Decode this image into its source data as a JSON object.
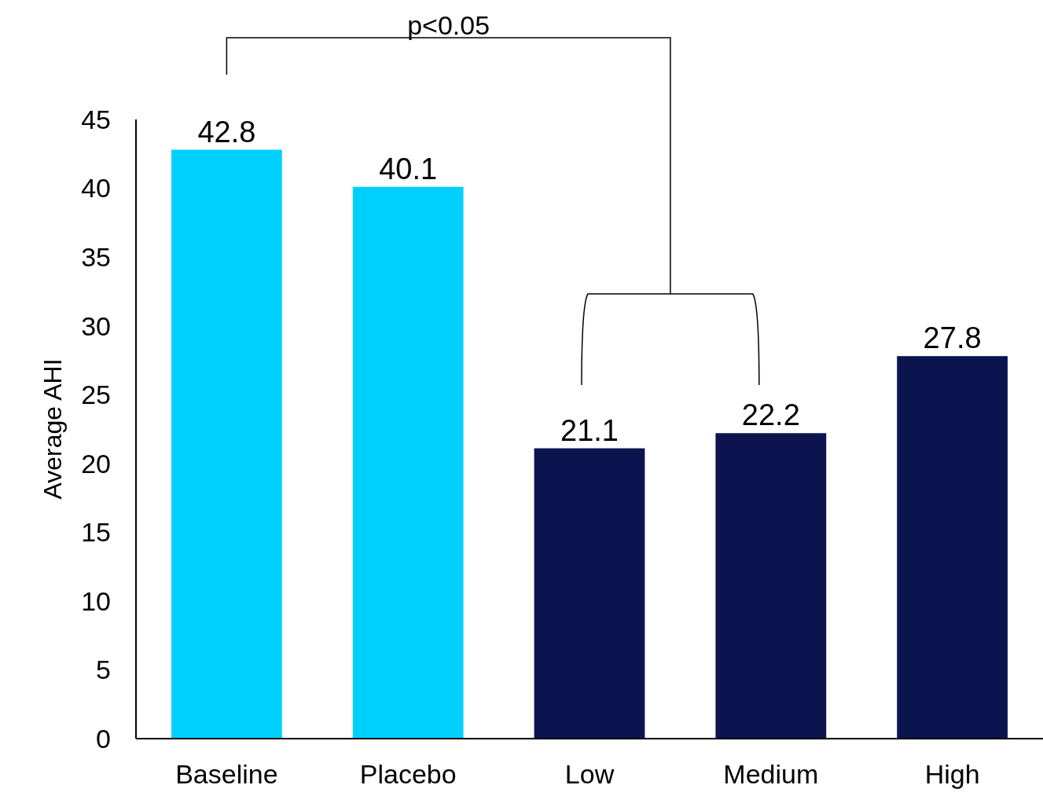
{
  "chart_data": {
    "type": "bar",
    "ylabel": "Average AHI",
    "categories": [
      "Baseline",
      "Placebo",
      "Low",
      "Medium",
      "High"
    ],
    "values": [
      42.8,
      40.1,
      21.1,
      22.2,
      27.8
    ],
    "colors": [
      "#00d0ff",
      "#00d0ff",
      "#0c1450",
      "#0c1450",
      "#0c1450"
    ],
    "ylim": [
      0,
      45
    ],
    "yticks": [
      0,
      5,
      10,
      15,
      20,
      25,
      30,
      35,
      40,
      45
    ],
    "grid": false,
    "data_labels": true,
    "annotations": [
      "p<0.05"
    ]
  }
}
